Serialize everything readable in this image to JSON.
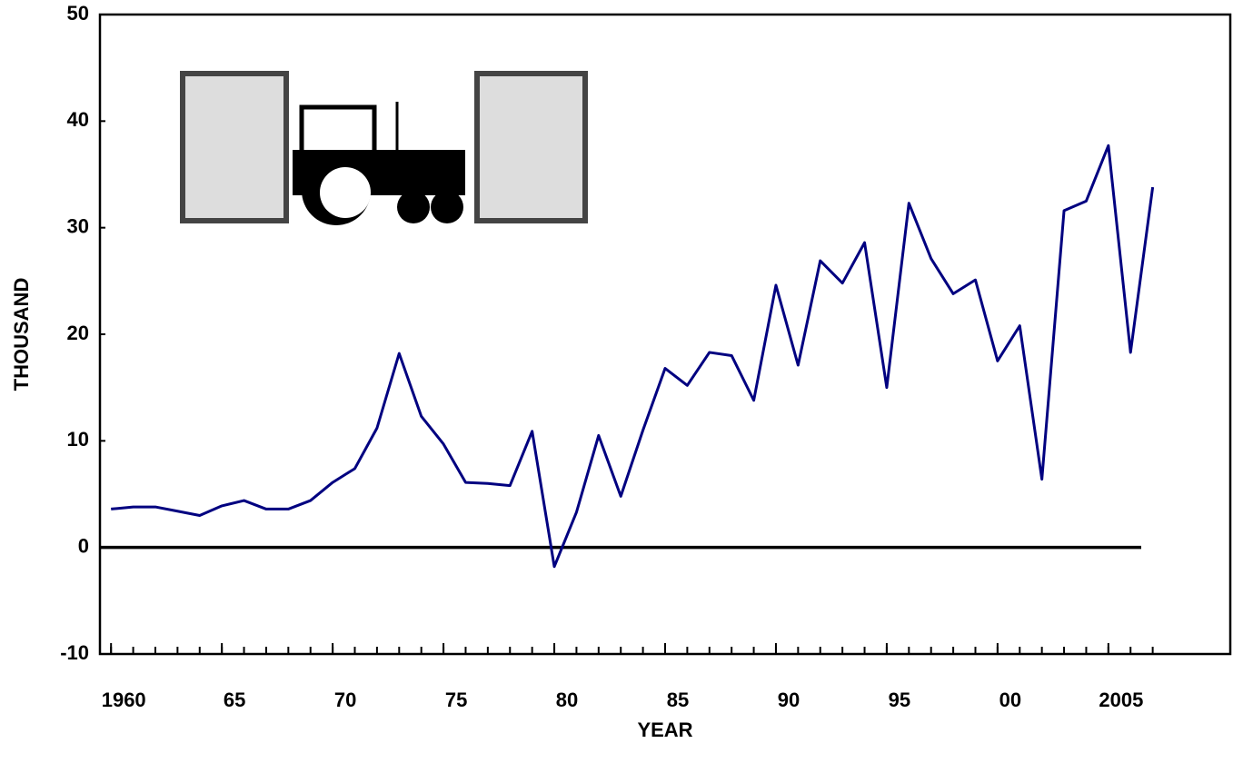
{
  "chart_data": {
    "type": "line",
    "x_label": "YEAR",
    "y_label": "THOUSAND",
    "x": [
      1960,
      1961,
      1962,
      1963,
      1964,
      1965,
      1966,
      1967,
      1968,
      1969,
      1970,
      1971,
      1972,
      1973,
      1974,
      1975,
      1976,
      1977,
      1978,
      1979,
      1980,
      1981,
      1982,
      1983,
      1984,
      1985,
      1986,
      1987,
      1988,
      1989,
      1990,
      1991,
      1992,
      1993,
      1994,
      1995,
      1996,
      1997,
      1998,
      1999,
      2000,
      2001,
      2002,
      2003,
      2004,
      2005,
      2006,
      2007
    ],
    "series": [
      {
        "color": "#000080",
        "values": [
          3.6,
          3.8,
          3.8,
          3.4,
          3.0,
          3.9,
          4.4,
          3.6,
          3.6,
          4.4,
          6.1,
          7.4,
          11.2,
          18.2,
          12.3,
          9.7,
          6.1,
          6.0,
          5.8,
          10.9,
          -1.8,
          3.3,
          10.5,
          4.8,
          11.0,
          16.8,
          15.2,
          18.3,
          18.0,
          13.8,
          24.6,
          17.1,
          26.9,
          24.8,
          28.6,
          15.0,
          32.3,
          27.1,
          23.8,
          25.1,
          17.5,
          20.8,
          6.4,
          31.6,
          32.5,
          37.7,
          18.3,
          33.8
        ]
      }
    ],
    "xlim": [
      1959.5,
      2010.5
    ],
    "xticks": [
      1960,
      {
        "value": 1965,
        "label": "65"
      },
      {
        "value": 1970,
        "label": "70"
      },
      {
        "value": 1975,
        "label": "75"
      },
      {
        "value": 1980,
        "label": "80"
      },
      {
        "value": 1985,
        "label": "85"
      },
      {
        "value": 1990,
        "label": "90"
      },
      {
        "value": 1995,
        "label": "95"
      },
      {
        "value": 2000,
        "label": "00"
      },
      2005
    ],
    "ylim": [
      -10,
      50
    ],
    "yticks": [
      -10,
      0,
      10,
      20,
      30,
      40,
      50
    ]
  }
}
